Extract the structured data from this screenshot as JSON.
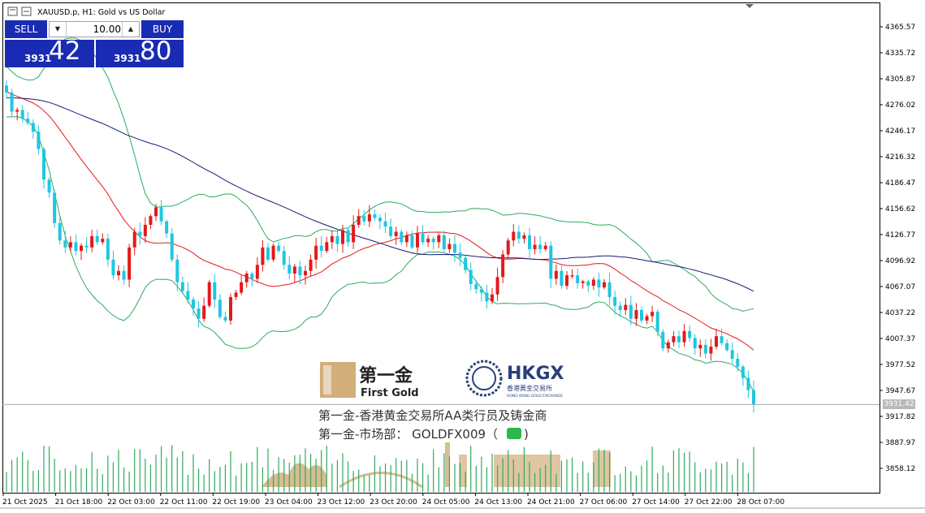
{
  "chart_title": "XAUUSD.p, H1:  Gold vs US Dollar",
  "trade_panel": {
    "sell_label": "SELL",
    "buy_label": "BUY",
    "lot_value": "10.00",
    "sell_price_small": "3931",
    "sell_price_big": "42",
    "buy_price_small": "3931",
    "buy_price_big": "80"
  },
  "current_price_label": "3931.42",
  "watermark": {
    "brand_cn": "第一金",
    "brand_en": "First Gold",
    "hkgx_logo_text": "HKGX",
    "hkgx_cn": "香港黃金交易所",
    "hkgx_en": "HONG KONG GOLD EXCHANGE",
    "line1": "第一金-香港黄金交易所AA类行员及铸金商",
    "line2": "第一金-市场部：  GOLDFX009（"
  },
  "colors": {
    "bull": "#e31a1a",
    "bear": "#1fc7e0",
    "ma_red": "#e31a1a",
    "ma_navy": "#1a1a7a",
    "bands": "#2eab5e",
    "volume": "#2eab5e",
    "panel_blue": "#1a2bb3"
  },
  "chart_data": {
    "type": "candlestick",
    "symbol": "XAUUSD.p",
    "timeframe": "H1",
    "y_ticks": [
      "4365.57",
      "4335.72",
      "4305.87",
      "4276.02",
      "4246.17",
      "4216.32",
      "4186.47",
      "4156.62",
      "4126.77",
      "4096.92",
      "4067.07",
      "4037.22",
      "4007.37",
      "3977.52",
      "3947.67",
      "3917.82",
      "3887.97",
      "3858.12"
    ],
    "x_ticks": [
      "21 Oct 2025",
      "21 Oct 18:00",
      "22 Oct 03:00",
      "22 Oct 11:00",
      "22 Oct 19:00",
      "23 Oct 04:00",
      "23 Oct 12:00",
      "23 Oct 20:00",
      "24 Oct 05:00",
      "24 Oct 13:00",
      "24 Oct 21:00",
      "27 Oct 06:00",
      "27 Oct 14:00",
      "27 Oct 22:00",
      "28 Oct 07:00"
    ],
    "closes": [
      4290,
      4268,
      4270,
      4260,
      4255,
      4245,
      4225,
      4190,
      4175,
      4140,
      4120,
      4112,
      4118,
      4108,
      4114,
      4112,
      4125,
      4118,
      4122,
      4098,
      4080,
      4085,
      4075,
      4112,
      4130,
      4125,
      4138,
      4148,
      4158,
      4142,
      4128,
      4098,
      4072,
      4062,
      4052,
      4042,
      4030,
      4045,
      4072,
      4052,
      4032,
      4028,
      4055,
      4060,
      4072,
      4082,
      4076,
      4092,
      4112,
      4098,
      4114,
      4108,
      4092,
      4082,
      4090,
      4080,
      4085,
      4098,
      4114,
      4108,
      4118,
      4125,
      4116,
      4132,
      4118,
      4138,
      4148,
      4142,
      4150,
      4146,
      4142,
      4136,
      4125,
      4130,
      4118,
      4126,
      4112,
      4128,
      4118,
      4122,
      4118,
      4126,
      4110,
      4116,
      4106,
      4100,
      4086,
      4070,
      4064,
      4060,
      4050,
      4058,
      4078,
      4104,
      4120,
      4130,
      4122,
      4126,
      4110,
      4115,
      4110,
      4114,
      4076,
      4085,
      4068,
      4080,
      4080,
      4071,
      4073,
      4068,
      4075,
      4066,
      4072,
      4055,
      4045,
      4040,
      4046,
      4030,
      4040,
      4028,
      4033,
      4038,
      4015,
      3996,
      4003,
      4010,
      4003,
      4016,
      4008,
      3996,
      4000,
      3990,
      3998,
      4010,
      4002,
      3994,
      3984,
      3975,
      3962,
      3948,
      3931.42
    ],
    "current_price": 3931.42,
    "ylim": [
      3837,
      4398
    ]
  }
}
